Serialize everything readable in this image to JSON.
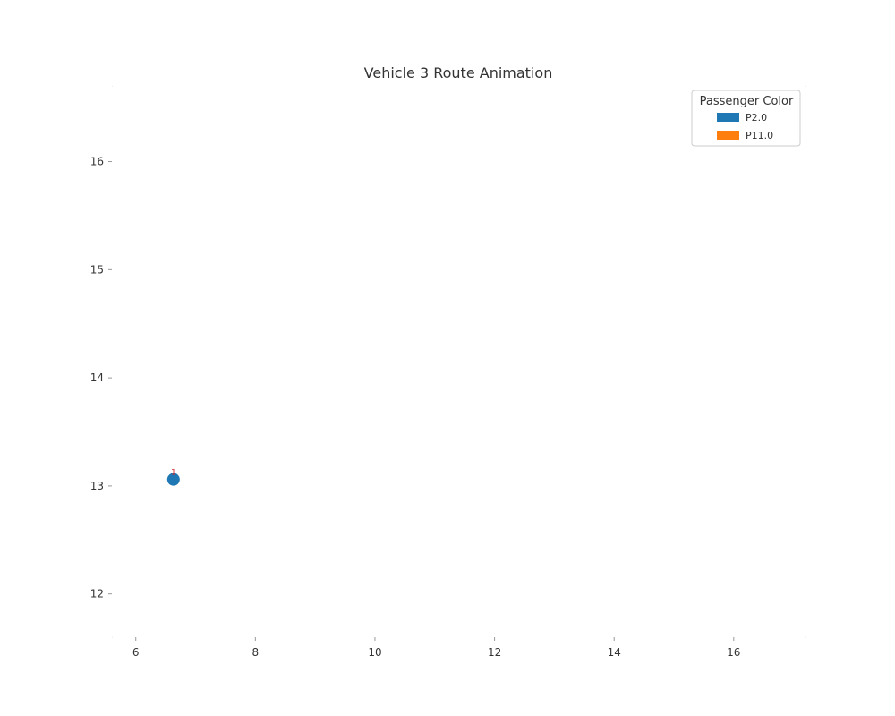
{
  "chart_data": {
    "type": "scatter",
    "title": "Vehicle 3 Route Animation",
    "xlabel": "",
    "ylabel": "",
    "xlim": [
      5.6,
      17.2
    ],
    "ylim": [
      11.6,
      16.7
    ],
    "xticks": [
      6,
      8,
      10,
      12,
      14,
      16
    ],
    "yticks": [
      12,
      13,
      14,
      15,
      16
    ],
    "grid": false,
    "legend": {
      "title": "Passenger Color",
      "placement": "top-right",
      "entries": [
        {
          "label": "P2.0",
          "color": "#1f77b4"
        },
        {
          "label": "P11.0",
          "color": "#ff7f0e"
        }
      ]
    },
    "points": [
      {
        "x": 6.63,
        "y": 13.06,
        "label": "1",
        "color": "#1f77b4",
        "label_color": "#d62728"
      }
    ]
  }
}
